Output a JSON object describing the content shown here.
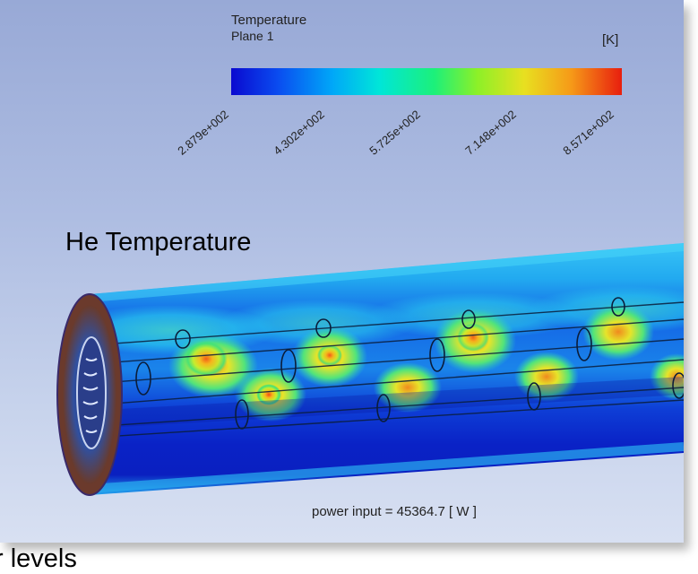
{
  "legend": {
    "title": "Temperature",
    "subtitle": "Plane 1",
    "unit": "[K]",
    "ticks": [
      "2.879e+002",
      "4.302e+002",
      "5.725e+002",
      "7.148e+002",
      "8.571e+002"
    ],
    "colors": [
      "#0a0ad0",
      "#00a8f8",
      "#1cf07a",
      "#e8e020",
      "#e81e0e"
    ]
  },
  "heading": "He Temperature",
  "power_label": "power input = 45364.7 [ W ]",
  "bottom_text": "r levels"
}
